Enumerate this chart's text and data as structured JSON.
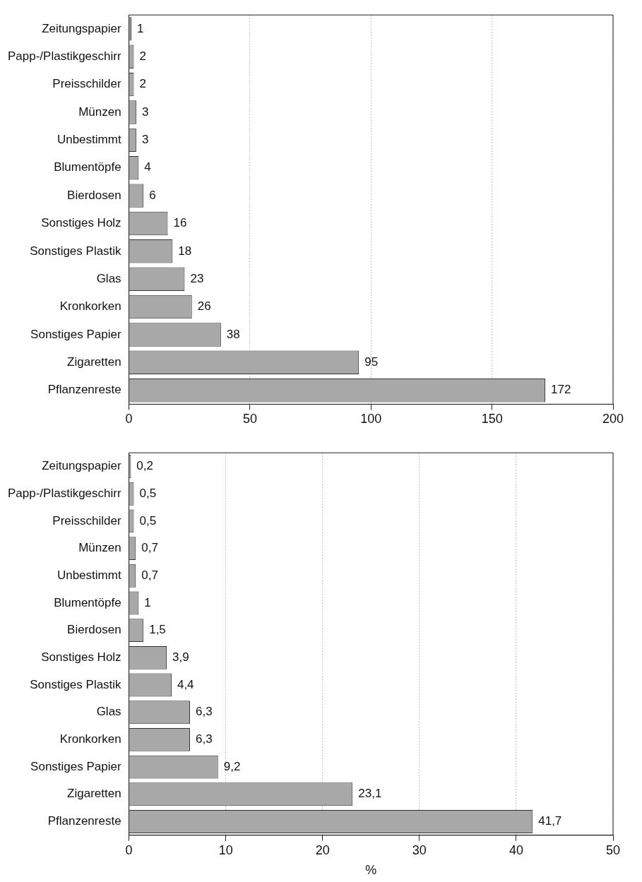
{
  "chart_data": [
    {
      "type": "bar",
      "orientation": "horizontal",
      "categories": [
        "Zeitungspapier",
        "Papp-/Plastikgeschirr",
        "Preisschilder",
        "Münzen",
        "Unbestimmt",
        "Blumentöpfe",
        "Bierdosen",
        "Sonstiges Holz",
        "Sonstiges Plastik",
        "Glas",
        "Kronkorken",
        "Sonstiges Papier",
        "Zigaretten",
        "Pflanzenreste"
      ],
      "values": [
        1,
        2,
        2,
        3,
        3,
        4,
        6,
        16,
        18,
        23,
        26,
        38,
        95,
        172
      ],
      "color": "#a8a8a8",
      "xlim": [
        0,
        200
      ],
      "xticks": [
        0,
        50,
        100,
        150,
        200
      ],
      "grid": "x",
      "data_labels": true,
      "legend": false
    },
    {
      "type": "bar",
      "orientation": "horizontal",
      "xlabel": "%",
      "categories": [
        "Zeitungspapier",
        "Papp-/Plastikgeschirr",
        "Preisschilder",
        "Münzen",
        "Unbestimmt",
        "Blumentöpfe",
        "Bierdosen",
        "Sonstiges Holz",
        "Sonstiges Plastik",
        "Glas",
        "Kronkorken",
        "Sonstiges Papier",
        "Zigaretten",
        "Pflanzenreste"
      ],
      "values": [
        0.2,
        0.5,
        0.5,
        0.7,
        0.7,
        1,
        1.5,
        3.9,
        4.4,
        6.3,
        6.3,
        9.2,
        23.1,
        41.7
      ],
      "value_labels": [
        "0,2",
        "0,5",
        "0,5",
        "0,7",
        "0,7",
        "1",
        "1,5",
        "3,9",
        "4,4",
        "6,3",
        "6,3",
        "9,2",
        "23,1",
        "41,7"
      ],
      "color": "#a8a8a8",
      "xlim": [
        0,
        50
      ],
      "xticks": [
        0,
        10,
        20,
        30,
        40,
        50
      ],
      "grid": "x",
      "legend": false
    }
  ]
}
